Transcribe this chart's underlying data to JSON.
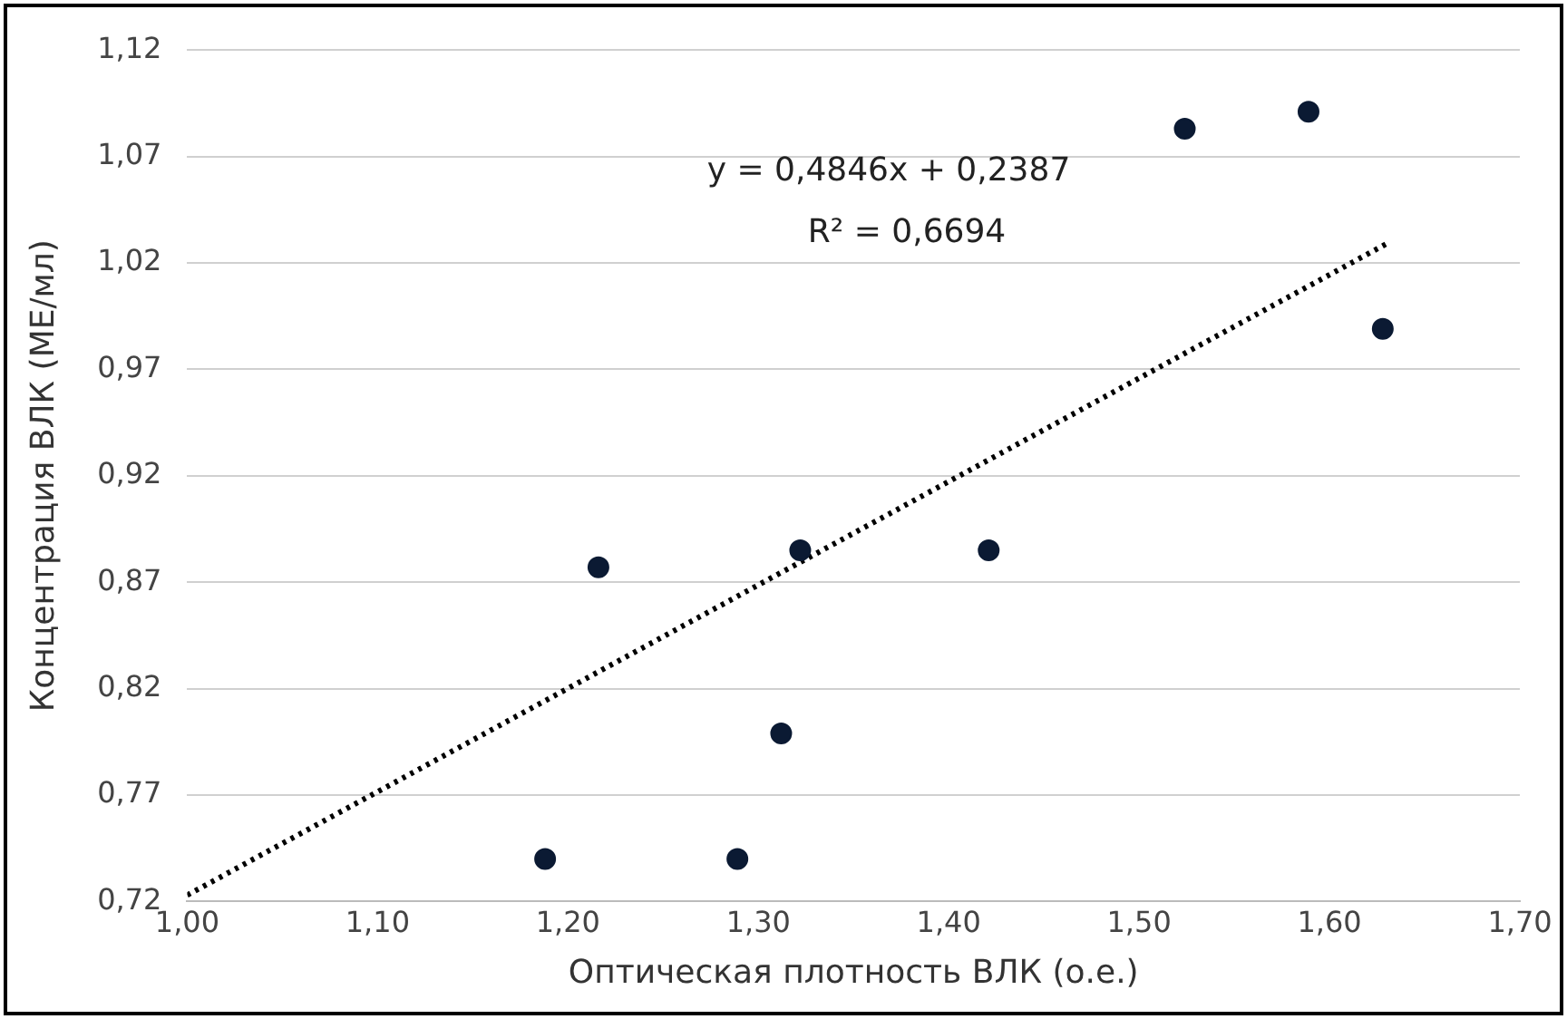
{
  "chart_data": {
    "type": "scatter",
    "xlabel": "Оптическая плотность ВЛК (о.е.)",
    "ylabel": "Концентрация ВЛК (МЕ/мл)",
    "annotations": [
      "y = 0,4846x + 0,2387",
      "R² = 0,6694"
    ],
    "series": [
      {
        "color": "#0b1a33",
        "marker": "circle",
        "x": [
          1.188,
          1.216,
          1.289,
          1.312,
          1.322,
          1.421,
          1.524,
          1.589,
          1.628
        ],
        "values": [
          0.74,
          0.877,
          0.74,
          0.799,
          0.885,
          0.885,
          1.083,
          1.091,
          0.989
        ]
      },
      {
        "type": "line",
        "color": "#000000",
        "line_style": "dotted",
        "marker": "none",
        "x": [
          1.0,
          1.63
        ],
        "values": [
          0.723,
          1.029
        ]
      }
    ],
    "xlim": [
      1.0,
      1.7
    ],
    "xticks": [
      {
        "value": 1.0,
        "label": "1,00"
      },
      {
        "value": 1.1,
        "label": "1,10"
      },
      {
        "value": 1.2,
        "label": "1,20"
      },
      {
        "value": 1.3,
        "label": "1,30"
      },
      {
        "value": 1.4,
        "label": "1,40"
      },
      {
        "value": 1.5,
        "label": "1,50"
      },
      {
        "value": 1.6,
        "label": "1,60"
      },
      {
        "value": 1.7,
        "label": "1,70"
      }
    ],
    "ylim": [
      0.72,
      1.12
    ],
    "yticks": [
      {
        "value": 0.72,
        "label": "0,72"
      },
      {
        "value": 0.77,
        "label": "0,77"
      },
      {
        "value": 0.82,
        "label": "0,82"
      },
      {
        "value": 0.87,
        "label": "0,87"
      },
      {
        "value": 0.92,
        "label": "0,92"
      },
      {
        "value": 0.97,
        "label": "0,97"
      },
      {
        "value": 1.02,
        "label": "1,02"
      },
      {
        "value": 1.07,
        "label": "1,07"
      },
      {
        "value": 1.12,
        "label": "1,12"
      }
    ],
    "grid": "y",
    "legend": false
  }
}
